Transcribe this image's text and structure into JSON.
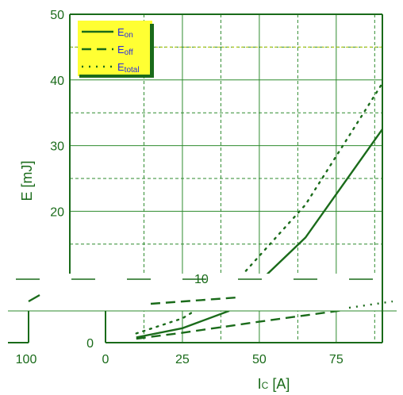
{
  "chart_data": {
    "type": "line",
    "title": "",
    "xlabel": "IC [A]",
    "xlabel_main": "I",
    "xlabel_sub": "C",
    "xlabel_unit": " [A]",
    "ylabel": "E [mJ]",
    "xlim": [
      0,
      90
    ],
    "ylim": [
      0,
      50
    ],
    "x_ticks": [
      0,
      25,
      50,
      75
    ],
    "y_ticks": [
      20,
      30,
      40,
      50
    ],
    "y_tick_zero": "0",
    "stray_labels": {
      "left_x_tick": "100",
      "overlap_fragment": "10"
    },
    "grid": true,
    "legend_placement": "top-left",
    "colors": {
      "line": "#1a6b1a",
      "grid": "#2e8b2e",
      "legend_bg": "#ffff33",
      "legend_text": "#2b2bdc",
      "axis_text": "#1a6b1a"
    },
    "series": [
      {
        "name": "Eon",
        "name_main": "E",
        "name_sub": "on",
        "style": "solid",
        "x": [
          10,
          25,
          40,
          65,
          90
        ],
        "y": [
          0.8,
          2.2,
          4.8,
          16.0,
          32.5
        ]
      },
      {
        "name": "Eoff",
        "name_main": "E",
        "name_sub": "off",
        "style": "dashed",
        "x": [
          10,
          25,
          50,
          75,
          90
        ],
        "y": [
          0.6,
          1.5,
          3.2,
          4.8,
          5.8
        ]
      },
      {
        "name": "Etotal",
        "name_main": "E",
        "name_sub": "total",
        "style": "dotted",
        "x": [
          10,
          25,
          40,
          65,
          90
        ],
        "y": [
          1.4,
          3.7,
          8.0,
          21.0,
          39.5
        ]
      }
    ]
  }
}
